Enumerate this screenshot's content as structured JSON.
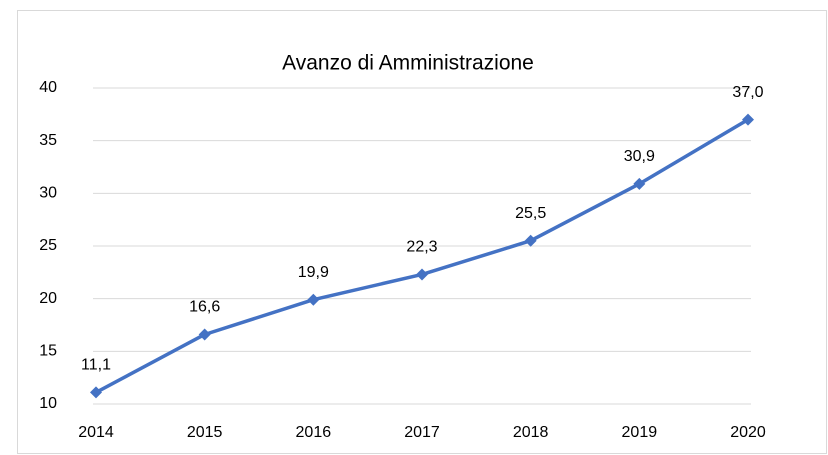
{
  "chart_data": {
    "type": "line",
    "title": "Avanzo di Amministrazione",
    "categories": [
      "2014",
      "2015",
      "2016",
      "2017",
      "2018",
      "2019",
      "2020"
    ],
    "values": [
      11.1,
      16.6,
      19.9,
      22.3,
      25.5,
      30.9,
      37.0
    ],
    "value_labels": [
      "11,1",
      "16,6",
      "19,9",
      "22,3",
      "25,5",
      "30,9",
      "37,0"
    ],
    "color": "#4472c4",
    "ylim": [
      10,
      40
    ],
    "yticks": [
      10,
      15,
      20,
      25,
      30,
      35,
      40
    ],
    "grid": true
  }
}
